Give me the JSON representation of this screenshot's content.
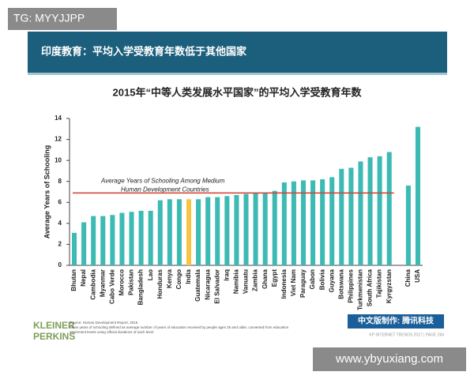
{
  "watermark_top": "TG: MYYJJPP",
  "watermark_bottom": "www.ybyuxiang.com",
  "header": "印度教育：平均入学受教育年数低于其他国家",
  "logo": [
    "KLEINER",
    "PERKINS"
  ],
  "source": [
    "Source: Human Development Report, 2016",
    "Mean years of schooling defined as average number of years of education received by people ages 25 and older, converted from education",
    "attainment levels using official durations of each level."
  ],
  "badge": "中文版制作: 腾讯科技",
  "footer": "KP INTERNET TRENDS 2017  |  PAGE 284",
  "chart_data": {
    "type": "bar",
    "title": "2015年“中等人类发展水平国家”的平均入学受教育年数",
    "ylabel": "Average Years of Schooling",
    "categories": [
      "Bhutan",
      "Nepal",
      "Cambodia",
      "Myanmar",
      "Cabo Verde",
      "Morocco",
      "Pakistan",
      "Bangladesh",
      "Lao",
      "Honduras",
      "Kenya",
      "Congo",
      "India",
      "Guatemala",
      "Nicaragua",
      "El Salvador",
      "Iraq",
      "Namibia",
      "Vanuatu",
      "Zambia",
      "Ghana",
      "Egypt",
      "Indonesia",
      "Viet Nam",
      "Paraguay",
      "Gabon",
      "Bolivia",
      "Guyana",
      "Botswana",
      "Philippines",
      "Turkmenistan",
      "South Africa",
      "Tajikistan",
      "Kyrgyzstan",
      null,
      "China",
      "USA"
    ],
    "values": [
      3.1,
      4.1,
      4.7,
      4.7,
      4.8,
      5.0,
      5.1,
      5.2,
      5.2,
      6.2,
      6.3,
      6.3,
      6.3,
      6.3,
      6.5,
      6.5,
      6.6,
      6.7,
      6.8,
      6.9,
      6.9,
      7.1,
      7.9,
      8.0,
      8.1,
      8.1,
      8.2,
      8.4,
      9.2,
      9.3,
      9.9,
      10.3,
      10.4,
      10.8,
      null,
      7.6,
      13.2
    ],
    "color": "#3dbab4",
    "highlight": {
      "index": 12,
      "color": "#f6c445"
    },
    "reference_line": {
      "value": 6.9,
      "color": "#d2402e",
      "label": [
        "Average Years of Schooling Among Medium",
        "Human Development Countries"
      ]
    },
    "ylim": [
      0,
      14
    ],
    "yticks": [
      0,
      2,
      4,
      6,
      8,
      10,
      12,
      14
    ],
    "grid": false
  }
}
